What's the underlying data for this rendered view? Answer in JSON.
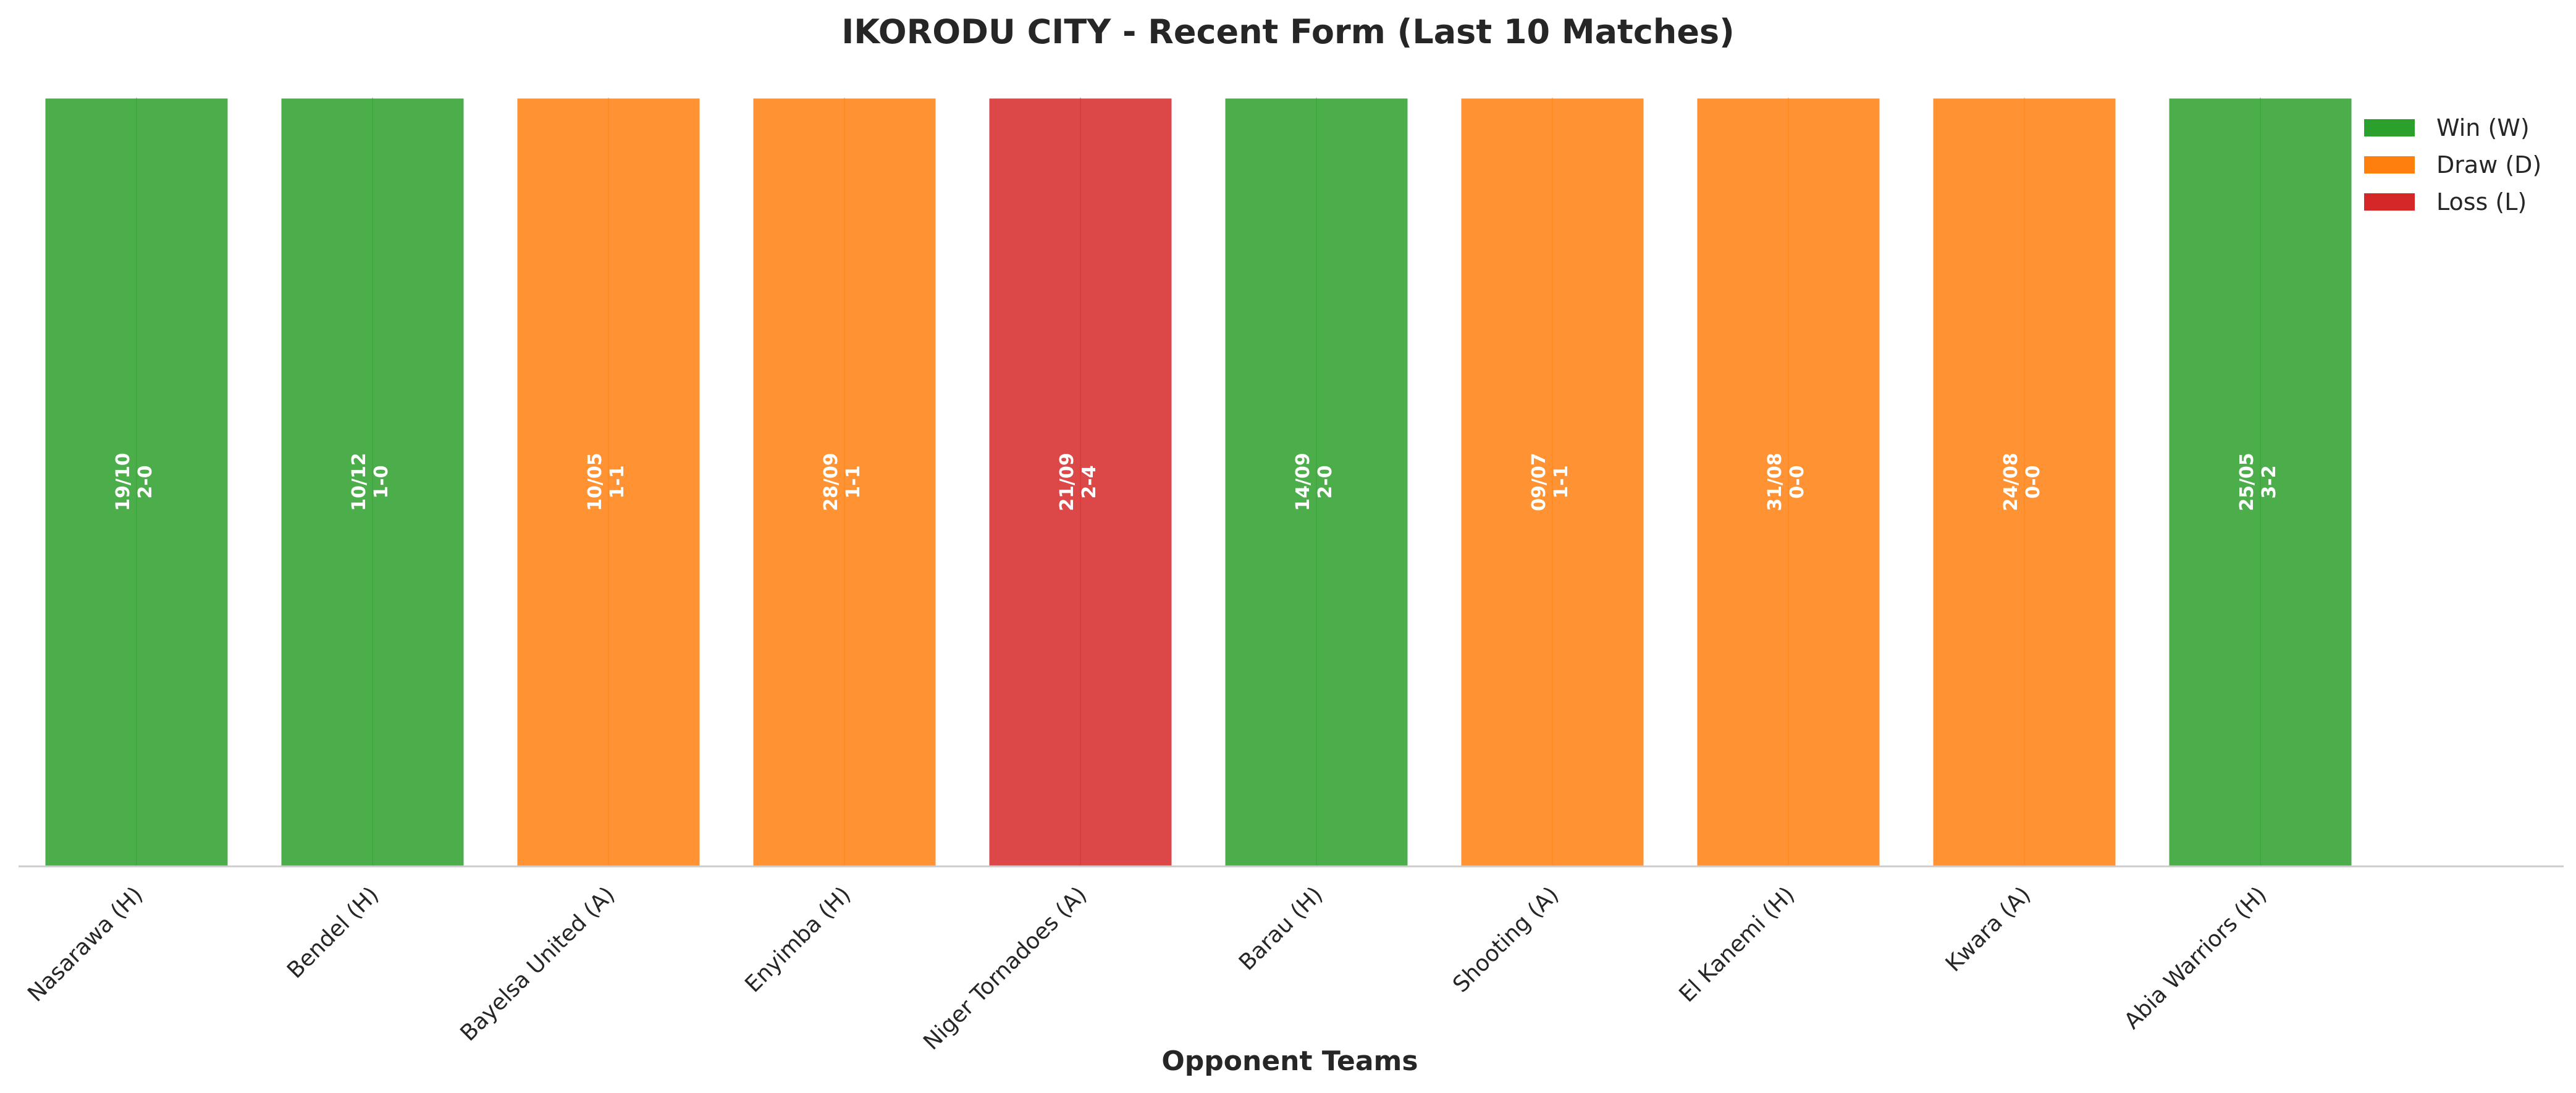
{
  "chart_data": {
    "type": "bar",
    "title": "IKORODU CITY - Recent Form (Last 10 Matches)",
    "xlabel": "Opponent Teams",
    "ylabel": "",
    "grid": false,
    "legend_position": "top-right",
    "colors": {
      "W": "#2ca02c",
      "D": "#ff7f0e",
      "L": "#d62728"
    },
    "legend": [
      {
        "key": "W",
        "label": "Win (W)"
      },
      {
        "key": "D",
        "label": "Draw (D)"
      },
      {
        "key": "L",
        "label": "Loss (L)"
      }
    ],
    "categories": [
      "Nasarawa (H)",
      "Bendel (H)",
      "Bayelsa United (A)",
      "Enyimba (H)",
      "Niger Tornadoes (A)",
      "Barau (H)",
      "Shooting (A)",
      "El Kanemi (H)",
      "Kwara (A)",
      "Abia Warriors (H)"
    ],
    "values": [
      1,
      1,
      1,
      1,
      1,
      1,
      1,
      1,
      1,
      1
    ],
    "results": [
      "W",
      "W",
      "D",
      "D",
      "L",
      "W",
      "D",
      "D",
      "D",
      "W"
    ],
    "dates": [
      "19/10",
      "10/12",
      "10/05",
      "28/09",
      "21/09",
      "14/09",
      "09/07",
      "31/08",
      "24/08",
      "25/05"
    ],
    "scores": [
      "2-0",
      "1-0",
      "1-1",
      "1-1",
      "2-4",
      "2-0",
      "1-1",
      "0-0",
      "0-0",
      "3-2"
    ]
  }
}
